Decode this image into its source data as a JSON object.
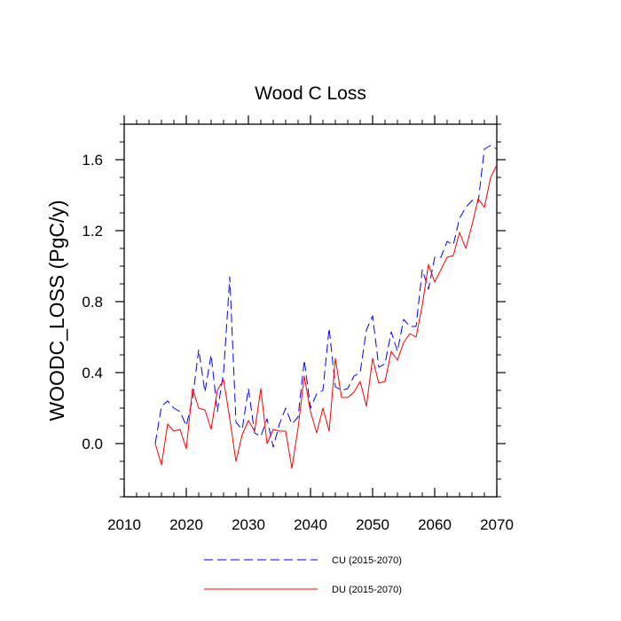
{
  "chart_data": {
    "type": "line",
    "title": "Wood C Loss",
    "xlabel": "",
    "ylabel": "WOODC_LOSS  (PgC/y)",
    "xlim": [
      2010,
      2070
    ],
    "ylim": [
      -0.3,
      1.8
    ],
    "xticks": [
      2010,
      2020,
      2030,
      2040,
      2050,
      2060,
      2070
    ],
    "xtick_labels": [
      "2010",
      "2020",
      "2030",
      "2040",
      "2050",
      "2060",
      "2070"
    ],
    "yticks": [
      0.0,
      0.4,
      0.8,
      1.2,
      1.6
    ],
    "ytick_labels": [
      "0.0",
      "0.4",
      "0.8",
      "1.2",
      "1.6"
    ],
    "grid": false,
    "legend_position": "bottom",
    "x": [
      2015,
      2016,
      2017,
      2018,
      2019,
      2020,
      2021,
      2022,
      2023,
      2024,
      2025,
      2026,
      2027,
      2028,
      2029,
      2030,
      2031,
      2032,
      2033,
      2034,
      2035,
      2036,
      2037,
      2038,
      2039,
      2040,
      2041,
      2042,
      2043,
      2044,
      2045,
      2046,
      2047,
      2048,
      2049,
      2050,
      2051,
      2052,
      2053,
      2054,
      2055,
      2056,
      2057,
      2058,
      2059,
      2060,
      2061,
      2062,
      2063,
      2064,
      2065,
      2066,
      2067,
      2068,
      2069,
      2070
    ],
    "series": [
      {
        "name": "CU (2015-2070)",
        "color": "#0000ff",
        "style": "dashed",
        "values": [
          0.0,
          0.21,
          0.24,
          0.2,
          0.18,
          0.1,
          0.25,
          0.53,
          0.29,
          0.5,
          0.18,
          0.4,
          0.94,
          0.12,
          0.08,
          0.31,
          0.06,
          0.04,
          0.14,
          -0.02,
          0.11,
          0.2,
          0.11,
          0.15,
          0.47,
          0.2,
          0.28,
          0.3,
          0.65,
          0.32,
          0.3,
          0.31,
          0.38,
          0.4,
          0.64,
          0.72,
          0.43,
          0.45,
          0.63,
          0.52,
          0.7,
          0.66,
          0.66,
          0.98,
          0.87,
          1.05,
          1.05,
          1.14,
          1.12,
          1.27,
          1.33,
          1.37,
          1.36,
          1.66,
          1.68,
          1.66
        ]
      },
      {
        "name": "DU (2015-2070)",
        "color": "#ff0000",
        "style": "solid",
        "values": [
          0.0,
          -0.12,
          0.11,
          0.07,
          0.08,
          -0.03,
          0.31,
          0.2,
          0.19,
          0.08,
          0.3,
          0.36,
          0.14,
          -0.1,
          0.05,
          0.13,
          0.07,
          0.31,
          0.0,
          0.08,
          0.07,
          0.07,
          -0.14,
          0.09,
          0.38,
          0.18,
          0.06,
          0.2,
          0.07,
          0.48,
          0.26,
          0.26,
          0.29,
          0.35,
          0.21,
          0.48,
          0.34,
          0.35,
          0.52,
          0.47,
          0.57,
          0.62,
          0.6,
          0.78,
          1.01,
          0.91,
          0.98,
          1.05,
          1.06,
          1.19,
          1.1,
          1.23,
          1.38,
          1.33,
          1.5,
          1.57
        ]
      }
    ]
  }
}
